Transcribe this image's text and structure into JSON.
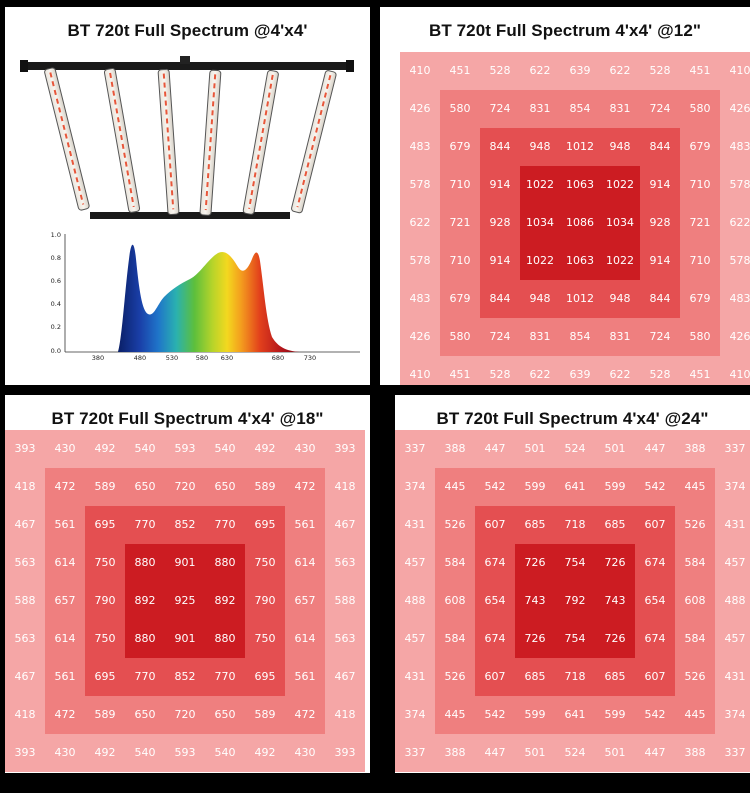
{
  "panels": [
    {
      "title": "BT 720t Full Spectrum @4'x4'",
      "spectrum": {
        "y_ticks": [
          "1.0",
          "0.8",
          "0.6",
          "0.4",
          "0.2",
          "0.0"
        ],
        "x_ticks": [
          "380",
          "480",
          "530",
          "580",
          "630",
          "680",
          "730"
        ]
      }
    },
    {
      "title": "BT 720t Full Spectrum 4'x4' @12\"",
      "ppfd": [
        [
          410,
          451,
          528,
          622,
          639,
          622,
          528,
          451,
          410
        ],
        [
          426,
          580,
          724,
          831,
          854,
          831,
          724,
          580,
          426
        ],
        [
          483,
          679,
          844,
          948,
          1012,
          948,
          844,
          679,
          483
        ],
        [
          578,
          710,
          914,
          1022,
          1063,
          1022,
          914,
          710,
          578
        ],
        [
          622,
          721,
          928,
          1034,
          1086,
          1034,
          928,
          721,
          622
        ],
        [
          578,
          710,
          914,
          1022,
          1063,
          1022,
          914,
          710,
          578
        ],
        [
          483,
          679,
          844,
          948,
          1012,
          948,
          844,
          679,
          483
        ],
        [
          426,
          580,
          724,
          831,
          854,
          831,
          724,
          580,
          426
        ],
        [
          410,
          451,
          528,
          622,
          639,
          622,
          528,
          451,
          410
        ]
      ]
    },
    {
      "title": "BT 720t Full Spectrum 4'x4' @18\"",
      "ppfd": [
        [
          393,
          430,
          492,
          540,
          593,
          540,
          492,
          430,
          393
        ],
        [
          418,
          472,
          589,
          650,
          720,
          650,
          589,
          472,
          418
        ],
        [
          467,
          561,
          695,
          770,
          852,
          770,
          695,
          561,
          467
        ],
        [
          563,
          614,
          750,
          880,
          901,
          880,
          750,
          614,
          563
        ],
        [
          588,
          657,
          790,
          892,
          925,
          892,
          790,
          657,
          588
        ],
        [
          563,
          614,
          750,
          880,
          901,
          880,
          750,
          614,
          563
        ],
        [
          467,
          561,
          695,
          770,
          852,
          770,
          695,
          561,
          467
        ],
        [
          418,
          472,
          589,
          650,
          720,
          650,
          589,
          472,
          418
        ],
        [
          393,
          430,
          492,
          540,
          593,
          540,
          492,
          430,
          393
        ]
      ]
    },
    {
      "title": "BT 720t Full Spectrum 4'x4' @24\"",
      "ppfd": [
        [
          337,
          388,
          447,
          501,
          524,
          501,
          447,
          388,
          337
        ],
        [
          374,
          445,
          542,
          599,
          641,
          599,
          542,
          445,
          374
        ],
        [
          431,
          526,
          607,
          685,
          718,
          685,
          607,
          526,
          431
        ],
        [
          457,
          584,
          674,
          726,
          754,
          726,
          674,
          584,
          457
        ],
        [
          488,
          608,
          654,
          743,
          792,
          743,
          654,
          608,
          488
        ],
        [
          457,
          584,
          674,
          726,
          754,
          726,
          674,
          584,
          457
        ],
        [
          431,
          526,
          607,
          685,
          718,
          685,
          607,
          526,
          431
        ],
        [
          374,
          445,
          542,
          599,
          641,
          599,
          542,
          445,
          374
        ],
        [
          337,
          388,
          447,
          501,
          524,
          501,
          447,
          388,
          337
        ]
      ]
    }
  ],
  "colors": {
    "ring0": "#f5a6a6",
    "ring1": "#ef7f7f",
    "ring2": "#e44f51",
    "ring3": "#cc1c22",
    "ring3_alt": "#d2252a"
  }
}
